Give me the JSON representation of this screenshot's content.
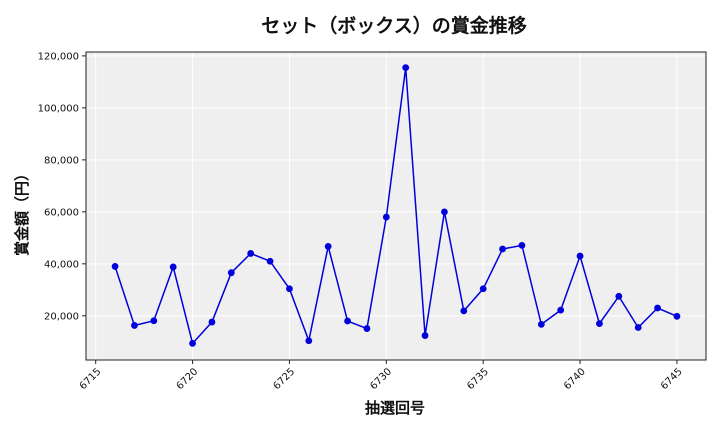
{
  "chart_data": {
    "type": "line",
    "title": "セット（ボックス）の賞金推移",
    "xlabel": "抽選回号",
    "ylabel": "賞金額（円）",
    "x": [
      6716,
      6717,
      6718,
      6719,
      6720,
      6721,
      6722,
      6723,
      6724,
      6725,
      6726,
      6727,
      6728,
      6729,
      6730,
      6731,
      6732,
      6733,
      6734,
      6735,
      6736,
      6737,
      6738,
      6739,
      6740,
      6741,
      6742,
      6743,
      6744,
      6745
    ],
    "series": [
      {
        "values": [
          39000,
          16300,
          18100,
          38800,
          9400,
          17600,
          36600,
          44000,
          41000,
          30400,
          10400,
          46700,
          18000,
          15100,
          58000,
          115500,
          12400,
          60000,
          21900,
          30400,
          45700,
          47100,
          16700,
          22200,
          43000,
          17000,
          27500,
          15500,
          23000,
          19800
        ],
        "color": "#0000dd"
      }
    ],
    "xticks": [
      6715,
      6720,
      6725,
      6730,
      6735,
      6740,
      6745
    ],
    "yticks": [
      20000,
      40000,
      60000,
      80000,
      100000,
      120000
    ],
    "xlim": [
      6714.5,
      6746.5
    ],
    "ylim": [
      3000,
      121500
    ],
    "grid": true,
    "plot_background": "#efefef"
  }
}
